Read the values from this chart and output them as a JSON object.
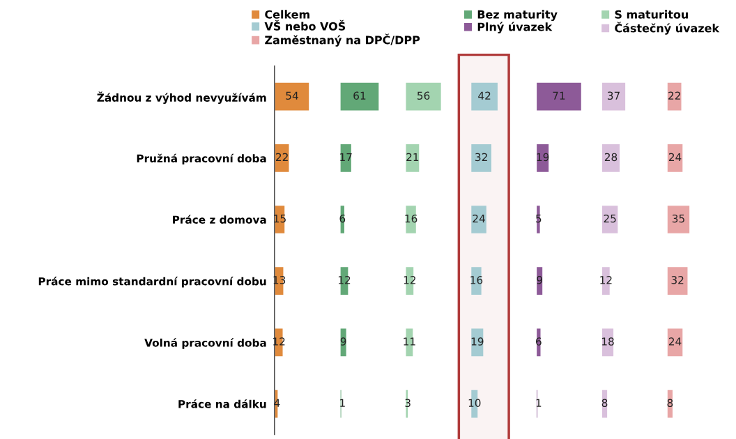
{
  "chart_data": [
    {
      "type": "bar",
      "orientation": "horizontal",
      "data_labels": true,
      "legend": "top",
      "tick_labels": "y",
      "categories": [
        "Žádnou z výhod nevyužívám",
        "Pružná pracovní doba",
        "Práce z domova",
        "Práce mimo standardní pracovní dobu",
        "Volná pracovní doba",
        "Práce na dálku"
      ],
      "series": [
        {
          "name": "Celkem",
          "color": "#e08a3c",
          "values": [
            54,
            22,
            15,
            13,
            12,
            4
          ]
        }
      ]
    },
    {
      "type": "bar",
      "orientation": "horizontal",
      "data_labels": true,
      "legend": "top",
      "tick_labels": false,
      "categories": [
        null,
        null,
        null,
        null,
        null,
        null
      ],
      "series": [
        {
          "name": "Bez maturity",
          "color": "#62a877",
          "values": [
            61,
            17,
            6,
            12,
            9,
            1
          ]
        }
      ]
    },
    {
      "type": "bar",
      "orientation": "horizontal",
      "data_labels": true,
      "legend": "top",
      "tick_labels": false,
      "categories": [
        null,
        null,
        null,
        null,
        null,
        null
      ],
      "series": [
        {
          "name": "S maturitou",
          "color": "#a3d4b0",
          "values": [
            56,
            21,
            16,
            12,
            11,
            3
          ]
        }
      ]
    },
    {
      "type": "bar",
      "orientation": "horizontal",
      "data_labels": true,
      "legend": "top",
      "tick_labels": false,
      "categories": [
        null,
        null,
        null,
        null,
        null,
        null
      ],
      "bands": [
        {
          "axis": "x",
          "from": -20,
          "to": 60,
          "color": "#b03a3a"
        }
      ],
      "series": [
        {
          "name": "VŠ nebo VOŠ",
          "color": "#a4cbd2",
          "values": [
            42,
            32,
            24,
            16,
            19,
            10
          ]
        }
      ]
    },
    {
      "type": "bar",
      "orientation": "horizontal",
      "data_labels": true,
      "legend": "top",
      "tick_labels": false,
      "categories": [
        null,
        null,
        null,
        null,
        null,
        null
      ],
      "series": [
        {
          "name": "Plný úvazek",
          "color": "#8d5a98",
          "values": [
            71,
            19,
            5,
            9,
            6,
            1
          ]
        }
      ]
    },
    {
      "type": "bar",
      "orientation": "horizontal",
      "data_labels": true,
      "legend": "top",
      "tick_labels": false,
      "categories": [
        null,
        null,
        null,
        null,
        null,
        null
      ],
      "series": [
        {
          "name": "Částečný úvazek",
          "color": "#d9c0dc",
          "values": [
            37,
            28,
            25,
            12,
            18,
            8
          ]
        }
      ]
    },
    {
      "type": "bar",
      "orientation": "horizontal",
      "data_labels": true,
      "legend": "top",
      "tick_labels": false,
      "categories": [
        null,
        null,
        null,
        null,
        null,
        null
      ],
      "series": [
        {
          "name": "Zaměstnaný na DPČ/DPP",
          "color": "#e8a6a6",
          "values": [
            22,
            24,
            35,
            32,
            24,
            8
          ]
        }
      ]
    }
  ]
}
